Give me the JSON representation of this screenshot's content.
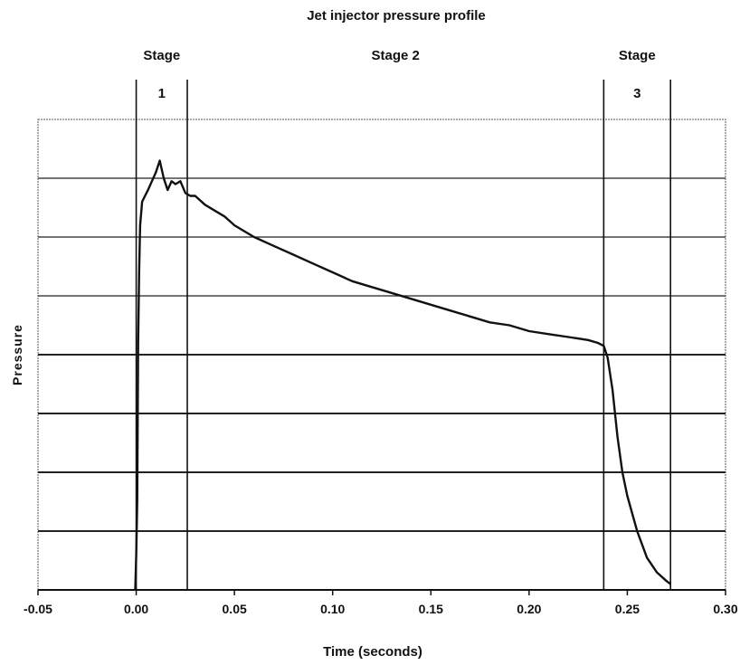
{
  "chart_data": {
    "type": "line",
    "title": "Jet injector pressure profile",
    "xlabel": "Time (seconds)",
    "ylabel": "Pressure",
    "xlim": [
      -0.05,
      0.3
    ],
    "xticks": [
      -0.05,
      0.0,
      0.05,
      0.1,
      0.15,
      0.2,
      0.25,
      0.3
    ],
    "xtick_labels": [
      "-0.05",
      "0.00",
      "0.05",
      "0.10",
      "0.15",
      "0.20",
      "0.25",
      "0.30"
    ],
    "ylim": [
      0,
      8
    ],
    "y_gridlines": [
      1,
      2,
      3,
      4,
      5,
      6,
      7,
      8
    ],
    "y_tick_labels_shown": false,
    "grid": true,
    "stage_boundaries": [
      0.0,
      0.026,
      0.238,
      0.272
    ],
    "stages": [
      {
        "label_top": "Stage",
        "label_bottom": "1",
        "x_center": 0.013
      },
      {
        "label_top": "Stage 2",
        "label_bottom": "",
        "x_center": 0.132
      },
      {
        "label_top": "Stage",
        "label_bottom": "3",
        "x_center": 0.255
      }
    ],
    "series": [
      {
        "x": [
          -0.0005,
          0.0,
          0.0005,
          0.001,
          0.0015,
          0.002,
          0.003,
          0.0045,
          0.006,
          0.008,
          0.01,
          0.012,
          0.014,
          0.016,
          0.018,
          0.02,
          0.0225,
          0.025,
          0.0275,
          0.03,
          0.035,
          0.04,
          0.045,
          0.05,
          0.055,
          0.06,
          0.07,
          0.08,
          0.09,
          0.1,
          0.11,
          0.12,
          0.13,
          0.14,
          0.15,
          0.16,
          0.17,
          0.18,
          0.19,
          0.2,
          0.21,
          0.22,
          0.23,
          0.235,
          0.238,
          0.24,
          0.2425,
          0.245,
          0.2475,
          0.25,
          0.255,
          0.26,
          0.265,
          0.27,
          0.272
        ],
        "y": [
          0.0,
          0.6,
          1.5,
          4.2,
          5.4,
          6.2,
          6.6,
          6.7,
          6.8,
          6.95,
          7.1,
          7.3,
          7.0,
          6.8,
          6.95,
          6.9,
          6.95,
          6.75,
          6.7,
          6.7,
          6.55,
          6.45,
          6.35,
          6.2,
          6.1,
          6.0,
          5.85,
          5.7,
          5.55,
          5.4,
          5.25,
          5.15,
          5.05,
          4.95,
          4.85,
          4.75,
          4.65,
          4.55,
          4.5,
          4.4,
          4.35,
          4.3,
          4.25,
          4.2,
          4.15,
          3.95,
          3.4,
          2.6,
          2.0,
          1.6,
          1.0,
          0.55,
          0.3,
          0.15,
          0.1
        ]
      }
    ]
  }
}
